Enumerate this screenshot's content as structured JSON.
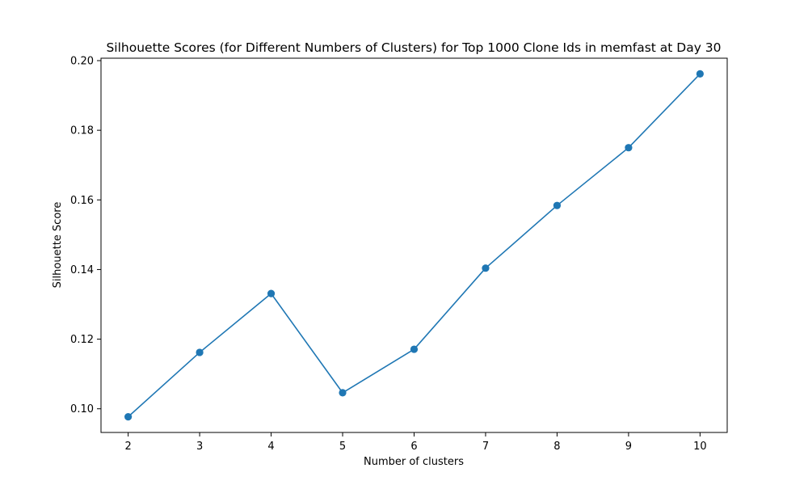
{
  "chart_data": {
    "type": "line",
    "title": "Silhouette Scores (for Different Numbers of Clusters) for Top 1000 Clone Ids in memfast at Day 30",
    "xlabel": "Number of clusters",
    "ylabel": "Silhouette Score",
    "x": [
      2,
      3,
      4,
      5,
      6,
      7,
      8,
      9,
      10
    ],
    "series": [
      {
        "values": [
          0.0977,
          0.1162,
          0.1331,
          0.1046,
          0.1171,
          0.1404,
          0.1584,
          0.175,
          0.1962
        ],
        "color": "#1f77b4"
      }
    ],
    "xlim": [
      1.62,
      10.38
    ],
    "ylim": [
      0.0932,
      0.2007
    ],
    "xticks": [
      "2",
      "3",
      "4",
      "5",
      "6",
      "7",
      "8",
      "9",
      "10"
    ],
    "yticks": [
      "0.10",
      "0.12",
      "0.14",
      "0.16",
      "0.18",
      "0.20"
    ],
    "grid": false,
    "marker": "circle"
  }
}
